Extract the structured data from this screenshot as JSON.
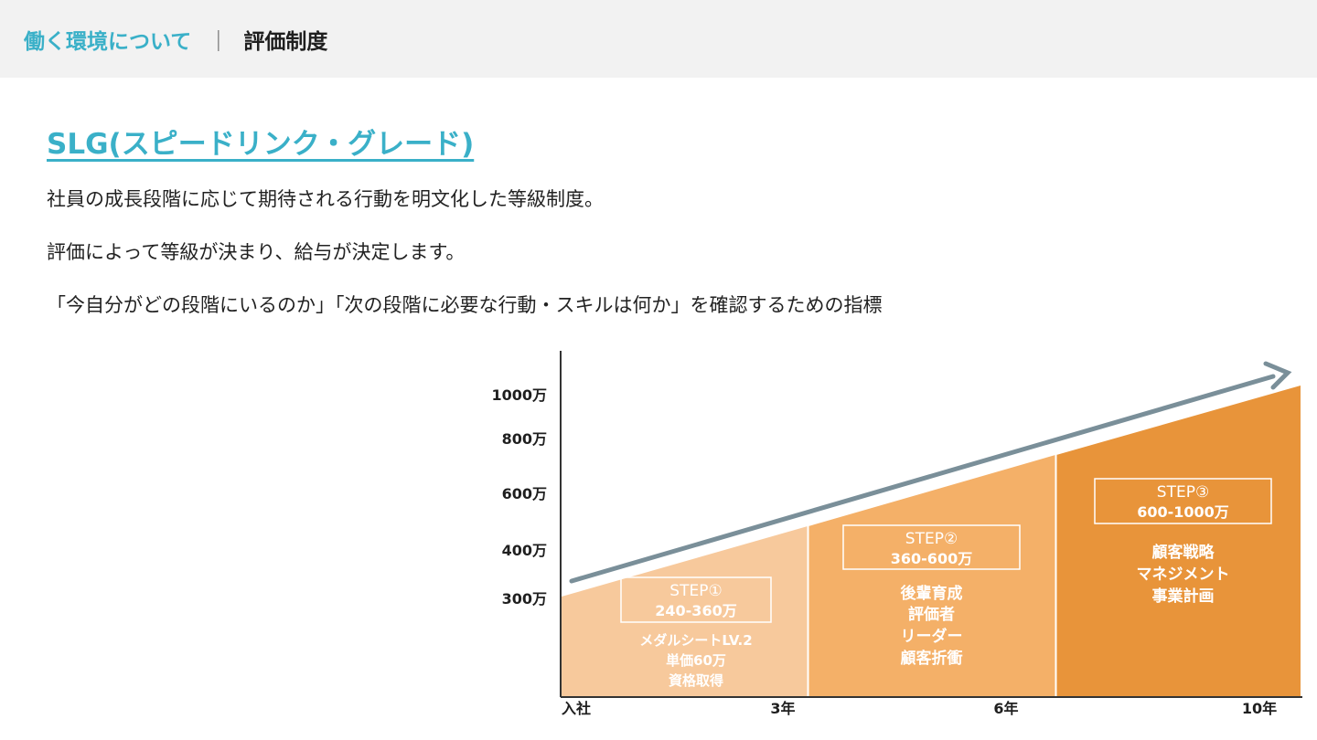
{
  "header": {
    "breadcrumb_parent": "働く環境について",
    "breadcrumb_separator": "｜",
    "breadcrumb_current": "評価制度"
  },
  "title": "SLG(スピードリンク・グレード)",
  "descriptions": [
    "社員の成長段階に応じて期待される行動を明文化した等級制度。",
    "評価によって等級が決まり、給与が決定します。",
    "「今自分がどの段階にいるのか」「次の段階に必要な行動・スキルは何か」を確認するための指標"
  ],
  "chart_data": {
    "type": "area",
    "y_labels": [
      "1000万",
      "800万",
      "600万",
      "400万",
      "300万"
    ],
    "x_labels": [
      "入社",
      "3年",
      "6年",
      "10年"
    ],
    "steps": [
      {
        "name": "STEP①",
        "range": "240-360万",
        "items": [
          "メダルシートLV.2",
          "単価60万",
          "資格取得"
        ],
        "color": "#f7c99c"
      },
      {
        "name": "STEP②",
        "range": "360-600万",
        "items": [
          "後輩育成",
          "評価者",
          "リーダー",
          "顧客折衝"
        ],
        "color": "#f4b068"
      },
      {
        "name": "STEP③",
        "range": "600-1000万",
        "items": [
          "顧客戦略",
          "マネジメント",
          "事業計画"
        ],
        "color": "#e8943a"
      }
    ],
    "arrow_color": "#7a8f99",
    "axis_color": "#333333"
  }
}
